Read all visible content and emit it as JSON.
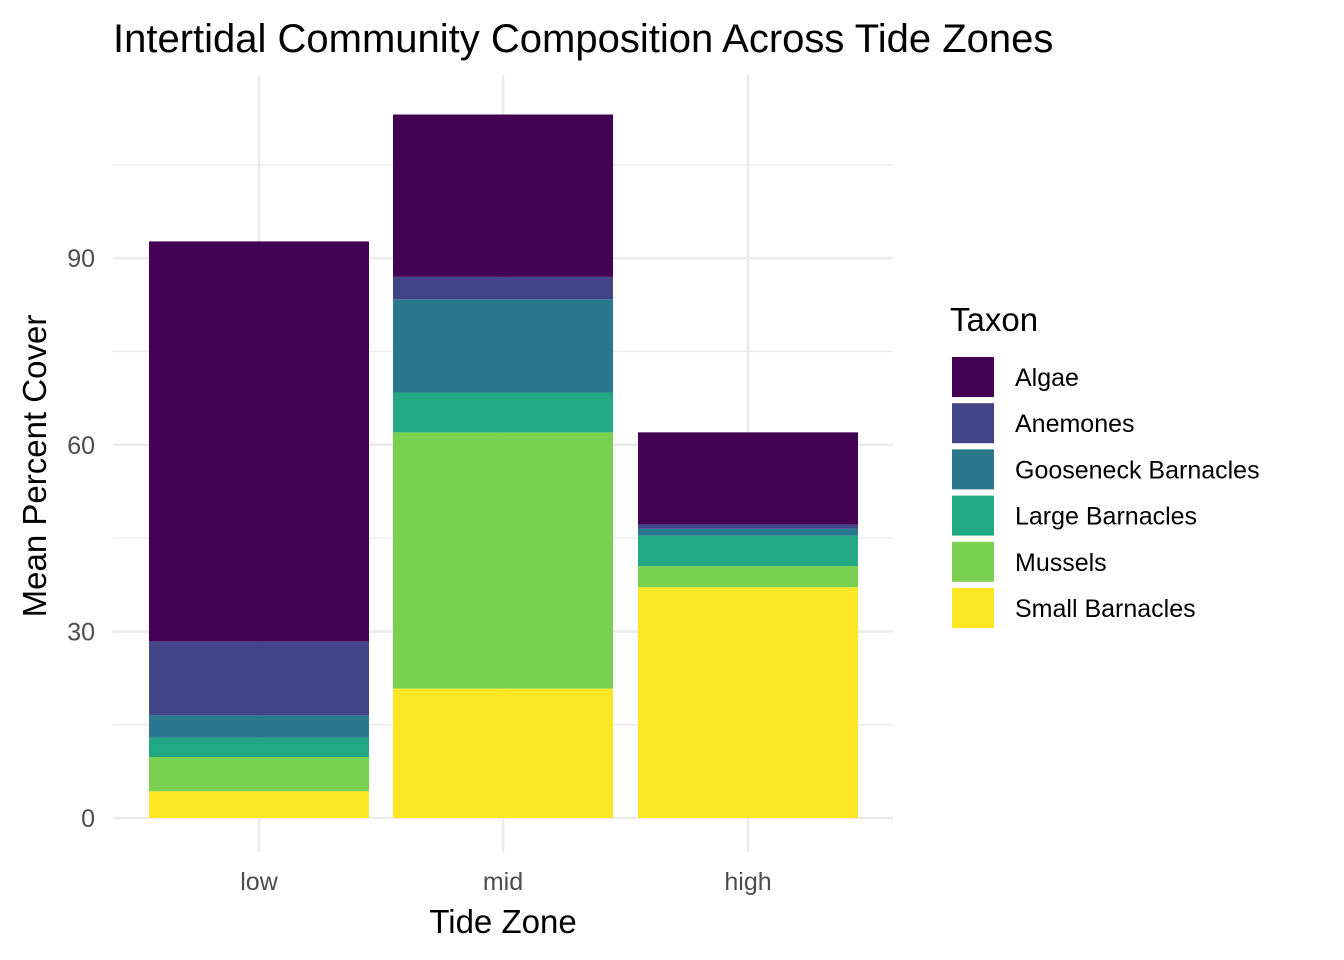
{
  "chart_data": {
    "type": "bar",
    "stacked": true,
    "title": "Intertidal Community Composition Across Tide Zones",
    "xlabel": "Tide Zone",
    "ylabel": "Mean Percent Cover",
    "categories": [
      "low",
      "mid",
      "high"
    ],
    "yticks": [
      0,
      30,
      60,
      90
    ],
    "ylim": [
      -3,
      118
    ],
    "grid": true,
    "legend": {
      "title": "Taxon",
      "position": "right"
    },
    "series": [
      {
        "name": "Small Barnacles",
        "color": "#FDE725",
        "values": [
          4.3,
          20.8,
          37.1
        ]
      },
      {
        "name": "Mussels",
        "color": "#7AD151",
        "values": [
          5.5,
          41.2,
          3.4
        ]
      },
      {
        "name": "Large Barnacles",
        "color": "#22A884",
        "values": [
          3.1,
          6.4,
          4.9
        ]
      },
      {
        "name": "Gooseneck Barnacles",
        "color": "#2A788E",
        "values": [
          3.6,
          15.0,
          1.1
        ]
      },
      {
        "name": "Anemones",
        "color": "#414487",
        "values": [
          11.9,
          3.6,
          0.7
        ]
      },
      {
        "name": "Algae",
        "color": "#440154",
        "values": [
          64.3,
          26.1,
          14.8
        ]
      }
    ],
    "legend_order": [
      "Algae",
      "Anemones",
      "Gooseneck Barnacles",
      "Large Barnacles",
      "Mussels",
      "Small Barnacles"
    ]
  }
}
